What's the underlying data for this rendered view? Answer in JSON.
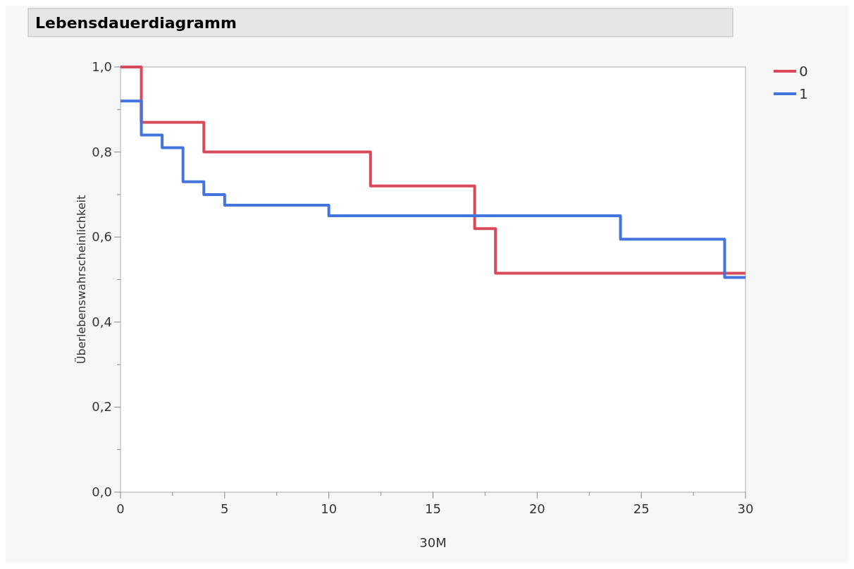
{
  "chart_data": {
    "type": "step",
    "title": "Lebensdauerdiagramm",
    "xlabel": "30M",
    "ylabel": "Überlebenswahrscheinlichkeit",
    "series": [
      {
        "name": "0",
        "color": "#d84a5a",
        "x": [
          0,
          1,
          4,
          12,
          17,
          18,
          30
        ],
        "values": [
          1.0,
          0.87,
          0.8,
          0.72,
          0.62,
          0.515,
          0.515
        ]
      },
      {
        "name": "1",
        "color": "#4274de",
        "x": [
          0,
          1,
          2,
          3,
          4,
          5,
          10,
          24,
          29,
          30
        ],
        "values": [
          0.92,
          0.84,
          0.81,
          0.73,
          0.7,
          0.675,
          0.65,
          0.595,
          0.505,
          0.505
        ]
      }
    ],
    "xlim": [
      0,
      30
    ],
    "xticks": [
      0,
      {
        "value": 2.5,
        "label": null
      },
      5,
      {
        "value": 7.5,
        "label": null
      },
      10,
      {
        "value": 12.5,
        "label": null
      },
      15,
      {
        "value": 17.5,
        "label": null
      },
      20,
      {
        "value": 22.5,
        "label": null
      },
      25,
      {
        "value": 27.5,
        "label": null
      },
      30
    ],
    "ylim": [
      0,
      1
    ],
    "yticks": [
      {
        "value": 0,
        "label": "0,0"
      },
      {
        "value": 0.1,
        "label": null
      },
      {
        "value": 0.2,
        "label": "0,2"
      },
      {
        "value": 0.3,
        "label": null
      },
      {
        "value": 0.4,
        "label": "0,4"
      },
      {
        "value": 0.5,
        "label": null
      },
      {
        "value": 0.6,
        "label": "0,6"
      },
      {
        "value": 0.7,
        "label": null
      },
      {
        "value": 0.8,
        "label": "0,8"
      },
      {
        "value": 0.9,
        "label": null
      },
      {
        "value": 1,
        "label": "1,0"
      }
    ],
    "legend": "top right",
    "grid": false,
    "line_style": "solid",
    "marker": "none"
  }
}
